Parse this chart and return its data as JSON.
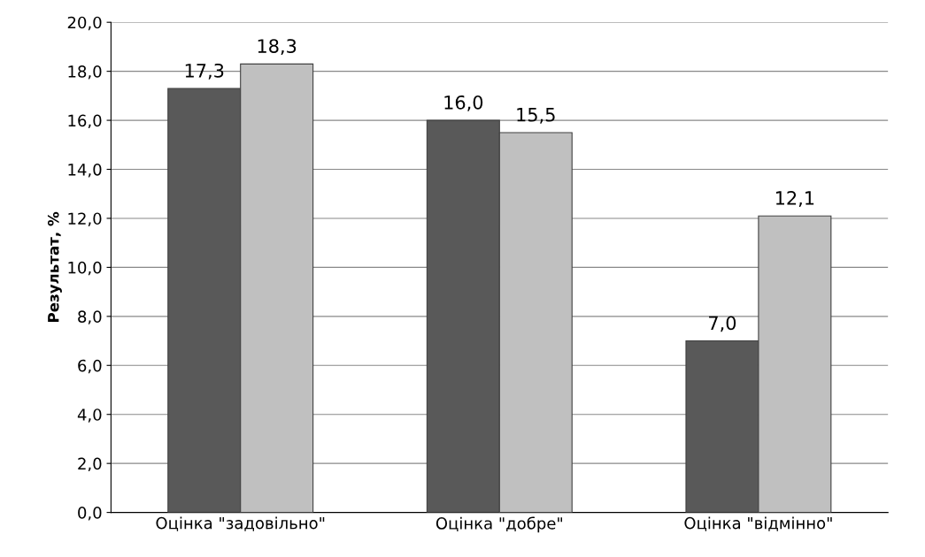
{
  "chart_data": {
    "type": "bar",
    "ylabel": "Результат, %",
    "categories": [
      "Оцінка \"задовільно\"",
      "Оцінка \"добре\"",
      "Оцінка \"відмінно\""
    ],
    "series": [
      {
        "color": "#595959",
        "values": [
          17.3,
          16.0,
          7.0
        ],
        "value_labels": [
          "17,3",
          "16,0",
          "7,0"
        ]
      },
      {
        "color": "#c0c0c0",
        "values": [
          18.3,
          15.5,
          12.1
        ],
        "value_labels": [
          "18,3",
          "15,5",
          "12,1"
        ]
      }
    ],
    "ylim": [
      0,
      20
    ],
    "yticks": [
      {
        "value": 0,
        "label": "0,0"
      },
      {
        "value": 2,
        "label": "2,0"
      },
      {
        "value": 4,
        "label": "4,0"
      },
      {
        "value": 6,
        "label": "6,0"
      },
      {
        "value": 8,
        "label": "8,0"
      },
      {
        "value": 10,
        "label": "10,0"
      },
      {
        "value": 12,
        "label": "12,0"
      },
      {
        "value": 14,
        "label": "14,0"
      },
      {
        "value": 16,
        "label": "16,0"
      },
      {
        "value": 18,
        "label": "18,0"
      },
      {
        "value": 20,
        "label": "20,0"
      }
    ],
    "grid": "y"
  }
}
